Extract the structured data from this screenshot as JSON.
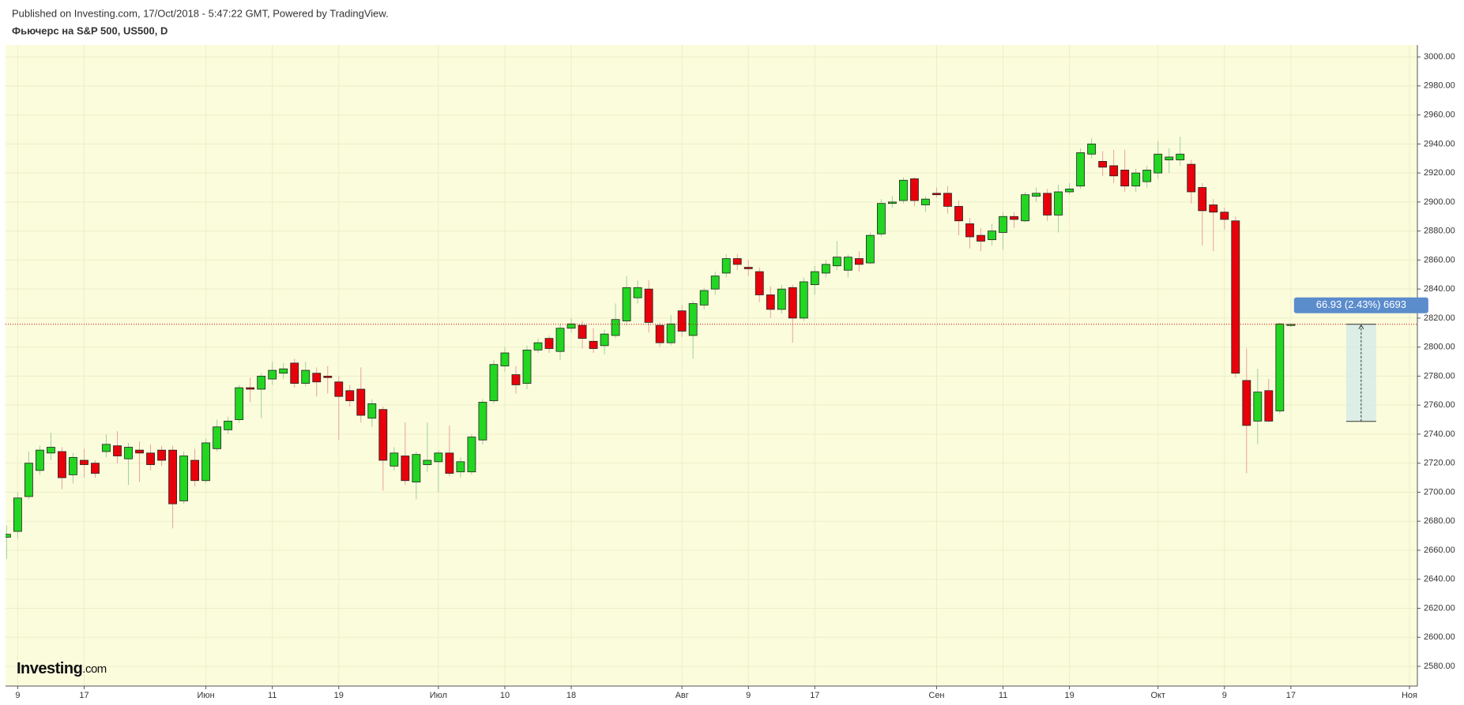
{
  "header": {
    "published": "Published on Investing.com, 17/Oct/2018 - 5:47:22 GMT, Powered by TradingView.",
    "symbol": "Фьючерс на S&P 500, US500, D"
  },
  "logo": {
    "name": "Investing",
    "suffix": ".com"
  },
  "chart_data": {
    "type": "candlestick",
    "x": [
      "05-08",
      "05-09",
      "05-10",
      "05-11",
      "05-14",
      "05-15",
      "05-16",
      "05-17",
      "05-18",
      "05-21",
      "05-22",
      "05-23",
      "05-24",
      "05-25",
      "05-28",
      "05-29",
      "05-30",
      "05-31",
      "06-01",
      "06-04",
      "06-05",
      "06-06",
      "06-07",
      "06-08",
      "06-11",
      "06-12",
      "06-13",
      "06-14",
      "06-15",
      "06-18",
      "06-19",
      "06-20",
      "06-21",
      "06-22",
      "06-25",
      "06-26",
      "06-27",
      "06-28",
      "06-29",
      "07-02",
      "07-03",
      "07-04",
      "07-05",
      "07-06",
      "07-09",
      "07-10",
      "07-11",
      "07-12",
      "07-13",
      "07-16",
      "07-17",
      "07-18",
      "07-19",
      "07-20",
      "07-23",
      "07-24",
      "07-25",
      "07-26",
      "07-27",
      "07-30",
      "07-31",
      "08-01",
      "08-02",
      "08-03",
      "08-06",
      "08-07",
      "08-08",
      "08-09",
      "08-10",
      "08-13",
      "08-14",
      "08-15",
      "08-16",
      "08-17",
      "08-20",
      "08-21",
      "08-22",
      "08-23",
      "08-24",
      "08-27",
      "08-28",
      "08-29",
      "08-30",
      "08-31",
      "09-03",
      "09-04",
      "09-05",
      "09-06",
      "09-07",
      "09-10",
      "09-11",
      "09-12",
      "09-13",
      "09-14",
      "09-17",
      "09-18",
      "09-19",
      "09-20",
      "09-21",
      "09-24",
      "09-25",
      "09-26",
      "09-27",
      "09-28",
      "10-01",
      "10-02",
      "10-03",
      "10-04",
      "10-05",
      "10-08",
      "10-09",
      "10-10",
      "10-11",
      "10-12",
      "10-15",
      "10-16",
      "10-17"
    ],
    "open": [
      2669,
      2673,
      2697,
      2715,
      2727,
      2728,
      2712,
      2722,
      2720,
      2728,
      2732,
      2723,
      2729,
      2727,
      2729,
      2729,
      2694,
      2722,
      2708,
      2730,
      2743,
      2750,
      2772,
      2771,
      2778,
      2782,
      2789,
      2775,
      2782,
      2780,
      2776,
      2770,
      2771,
      2751,
      2757,
      2718,
      2725,
      2707,
      2719,
      2721,
      2727,
      2714,
      2714,
      2736,
      2763,
      2787,
      2781,
      2775,
      2798,
      2806,
      2797,
      2813,
      2815,
      2804,
      2801,
      2808,
      2818,
      2834,
      2840,
      2815,
      2803,
      2825,
      2808,
      2829,
      2840,
      2851,
      2861,
      2855,
      2852,
      2836,
      2826,
      2841,
      2820,
      2843,
      2851,
      2856,
      2853,
      2861,
      2858,
      2878,
      2899,
      2901,
      2916,
      2898,
      2906,
      2906,
      2897,
      2885,
      2877,
      2874,
      2879,
      2890,
      2887,
      2904,
      2906,
      2891,
      2907,
      2911,
      2933,
      2928,
      2925,
      2922,
      2911,
      2914,
      2920,
      2929,
      2929,
      2926,
      2910,
      2898,
      2893,
      2887,
      2777,
      2749,
      2770,
      2756,
      2815.2
    ],
    "high": [
      2677,
      2700,
      2728,
      2732,
      2741,
      2731,
      2727,
      2730,
      2722,
      2740,
      2742,
      2734,
      2735,
      2733,
      2732,
      2732,
      2728,
      2730,
      2737,
      2750,
      2752,
      2774,
      2779,
      2782,
      2790,
      2789,
      2792,
      2790,
      2786,
      2787,
      2780,
      2774,
      2786,
      2764,
      2759,
      2731,
      2748,
      2728,
      2748,
      2729,
      2746,
      2724,
      2740,
      2764,
      2791,
      2800,
      2787,
      2801,
      2806,
      2808,
      2816,
      2820,
      2818,
      2813,
      2812,
      2830,
      2849,
      2846,
      2846,
      2817,
      2822,
      2829,
      2832,
      2841,
      2852,
      2864,
      2864,
      2860,
      2855,
      2842,
      2843,
      2843,
      2848,
      2856,
      2860,
      2873,
      2864,
      2866,
      2879,
      2902,
      2904,
      2917,
      2917,
      2904,
      2910,
      2911,
      2901,
      2889,
      2882,
      2885,
      2893,
      2893,
      2907,
      2910,
      2909,
      2912,
      2913,
      2937,
      2944,
      2935,
      2936,
      2936,
      2923,
      2925,
      2942,
      2937,
      2945,
      2929,
      2913,
      2902,
      2896,
      2890,
      2799,
      2785,
      2778,
      2817,
      2816
    ],
    "low": [
      2654,
      2668,
      2695,
      2712,
      2722,
      2702,
      2706,
      2710,
      2710,
      2724,
      2720,
      2705,
      2707,
      2715,
      2718,
      2675,
      2692,
      2704,
      2706,
      2728,
      2740,
      2748,
      2762,
      2751,
      2774,
      2778,
      2772,
      2773,
      2766,
      2768,
      2736,
      2759,
      2748,
      2745,
      2701,
      2715,
      2705,
      2695,
      2714,
      2700,
      2711,
      2710,
      2712,
      2733,
      2761,
      2783,
      2768,
      2771,
      2796,
      2796,
      2791,
      2810,
      2799,
      2796,
      2795,
      2806,
      2815,
      2830,
      2810,
      2800,
      2801,
      2807,
      2792,
      2826,
      2836,
      2848,
      2853,
      2849,
      2831,
      2820,
      2823,
      2803,
      2818,
      2836,
      2848,
      2853,
      2848,
      2852,
      2857,
      2876,
      2896,
      2899,
      2897,
      2893,
      2903,
      2892,
      2877,
      2868,
      2866,
      2870,
      2867,
      2882,
      2886,
      2900,
      2887,
      2879,
      2905,
      2909,
      2930,
      2918,
      2913,
      2907,
      2907,
      2910,
      2916,
      2920,
      2925,
      2899,
      2870,
      2866,
      2881,
      2779,
      2713,
      2733,
      2748,
      2754,
      2814
    ],
    "close": [
      2671,
      2696,
      2720,
      2729,
      2731,
      2710,
      2724,
      2719,
      2713,
      2733,
      2725,
      2731,
      2727,
      2719,
      2722,
      2692,
      2725,
      2708,
      2734,
      2745,
      2749,
      2772,
      2771,
      2780,
      2784,
      2785,
      2775,
      2784,
      2776,
      2779,
      2766,
      2763,
      2753,
      2761,
      2722,
      2727,
      2708,
      2726,
      2722,
      2727,
      2713,
      2721,
      2738,
      2762,
      2788,
      2796,
      2774,
      2798,
      2803,
      2799,
      2813,
      2816,
      2806,
      2799,
      2809,
      2819,
      2841,
      2841,
      2817,
      2803,
      2816,
      2811,
      2830,
      2839,
      2849,
      2861,
      2857,
      2854,
      2836,
      2826,
      2840,
      2820,
      2845,
      2852,
      2857,
      2862,
      2862,
      2857,
      2877,
      2899,
      2900,
      2915,
      2901,
      2902,
      2905,
      2897,
      2887,
      2876,
      2873,
      2880,
      2890,
      2888,
      2905,
      2906,
      2891,
      2907,
      2909,
      2934,
      2940,
      2924,
      2918,
      2911,
      2920,
      2922,
      2933,
      2931,
      2933,
      2907,
      2894,
      2893,
      2888,
      2782,
      2746,
      2769,
      2749,
      2816,
      2815.7
    ],
    "up_color": "#22d622",
    "down_color": "#e8000b",
    "grid": true,
    "xlim": [
      "05-08",
      "11-02"
    ],
    "xticks": [
      {
        "value": "05-09",
        "label": "9"
      },
      {
        "value": "05-17",
        "label": "17"
      },
      {
        "value": "06-01",
        "label": "Июн"
      },
      {
        "value": "06-11",
        "label": "11"
      },
      {
        "value": "06-19",
        "label": "19"
      },
      {
        "value": "07-02",
        "label": "Июл"
      },
      {
        "value": "07-10",
        "label": "10"
      },
      {
        "value": "07-18",
        "label": "18"
      },
      {
        "value": "08-01",
        "label": "Авг"
      },
      {
        "value": "08-09",
        "label": "9"
      },
      {
        "value": "08-17",
        "label": "17"
      },
      {
        "value": "09-03",
        "label": "Сен"
      },
      {
        "value": "09-11",
        "label": "11"
      },
      {
        "value": "09-19",
        "label": "19"
      },
      {
        "value": "10-01",
        "label": "Окт"
      },
      {
        "value": "10-09",
        "label": "9"
      },
      {
        "value": "10-17",
        "label": "17"
      },
      {
        "value": "11-01",
        "label": "Ноя"
      }
    ],
    "ylim": [
      2566.4,
      3008.2
    ],
    "yticks": [
      {
        "value": 2580,
        "label": "2580.00"
      },
      {
        "value": 2600,
        "label": "2600.00"
      },
      {
        "value": 2620,
        "label": "2620.00"
      },
      {
        "value": 2640,
        "label": "2640.00"
      },
      {
        "value": 2660,
        "label": "2660.00"
      },
      {
        "value": 2680,
        "label": "2680.00"
      },
      {
        "value": 2700,
        "label": "2700.00"
      },
      {
        "value": 2720,
        "label": "2720.00"
      },
      {
        "value": 2740,
        "label": "2740.00"
      },
      {
        "value": 2760,
        "label": "2760.00"
      },
      {
        "value": 2780,
        "label": "2780.00"
      },
      {
        "value": 2800,
        "label": "2800.00"
      },
      {
        "value": 2820,
        "label": "2820.00"
      },
      {
        "value": 2840,
        "label": "2840.00"
      },
      {
        "value": 2860,
        "label": "2860.00"
      },
      {
        "value": 2880,
        "label": "2880.00"
      },
      {
        "value": 2900,
        "label": "2900.00"
      },
      {
        "value": 2920,
        "label": "2920.00"
      },
      {
        "value": 2940,
        "label": "2940.00"
      },
      {
        "value": 2960,
        "label": "2960.00"
      },
      {
        "value": 2980,
        "label": "2980.00"
      },
      {
        "value": 3000,
        "label": "3000.00"
      }
    ],
    "measure": {
      "label": "66.93 (2.43%) 6693",
      "from": 2748.8,
      "to": 2815.7
    }
  }
}
